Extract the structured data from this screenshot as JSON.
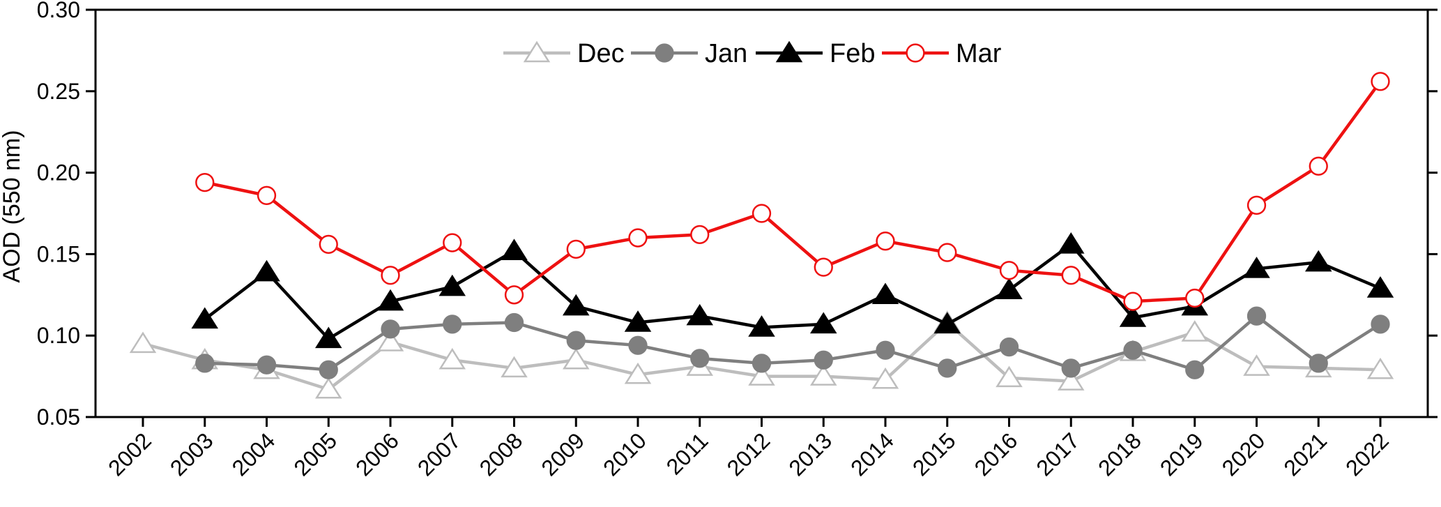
{
  "chart_data": {
    "type": "line",
    "ylabel": "AOD (550 nm)",
    "xlabel": "",
    "ylim": [
      0.05,
      0.3
    ],
    "yticks": [
      "0.05",
      "0.10",
      "0.15",
      "0.20",
      "0.25",
      "0.30"
    ],
    "x": [
      2002,
      2003,
      2004,
      2005,
      2006,
      2007,
      2008,
      2009,
      2010,
      2011,
      2012,
      2013,
      2014,
      2015,
      2016,
      2017,
      2018,
      2019,
      2020,
      2021,
      2022
    ],
    "xtick_labels": [
      "2002",
      "2003",
      "2004",
      "2005",
      "2006",
      "2007",
      "2008",
      "2009",
      "2010",
      "2011",
      "2012",
      "2013",
      "2014",
      "2015",
      "2016",
      "2017",
      "2018",
      "2019",
      "2020",
      "2021",
      "2022"
    ],
    "grid": false,
    "legend_position": "top-center",
    "series": [
      {
        "name": "Dec",
        "color": "#bdbdbd",
        "marker": "triangle-open",
        "x": [
          2002,
          2003,
          2004,
          2005,
          2006,
          2007,
          2008,
          2009,
          2010,
          2011,
          2012,
          2013,
          2014,
          2015,
          2016,
          2017,
          2018,
          2019,
          2020,
          2021,
          2022
        ],
        "values": [
          0.095,
          0.085,
          0.079,
          0.067,
          0.096,
          0.085,
          0.08,
          0.085,
          0.076,
          0.081,
          0.075,
          0.075,
          0.073,
          0.108,
          0.074,
          0.072,
          0.09,
          0.102,
          0.081,
          0.08,
          0.079
        ]
      },
      {
        "name": "Jan",
        "color": "#7f7f7f",
        "marker": "circle-filled",
        "x": [
          2003,
          2004,
          2005,
          2006,
          2007,
          2008,
          2009,
          2010,
          2011,
          2012,
          2013,
          2014,
          2015,
          2016,
          2017,
          2018,
          2019,
          2020,
          2021,
          2022
        ],
        "values": [
          0.083,
          0.082,
          0.079,
          0.104,
          0.107,
          0.108,
          0.097,
          0.094,
          0.086,
          0.083,
          0.085,
          0.091,
          0.08,
          0.093,
          0.08,
          0.091,
          0.079,
          0.112,
          0.083,
          0.107
        ]
      },
      {
        "name": "Feb",
        "color": "#000000",
        "marker": "triangle-filled",
        "x": [
          2003,
          2004,
          2005,
          2006,
          2007,
          2008,
          2009,
          2010,
          2011,
          2012,
          2013,
          2014,
          2015,
          2016,
          2017,
          2018,
          2019,
          2020,
          2021,
          2022
        ],
        "values": [
          0.11,
          0.139,
          0.098,
          0.121,
          0.13,
          0.152,
          0.118,
          0.108,
          0.112,
          0.105,
          0.107,
          0.125,
          0.107,
          0.128,
          0.156,
          0.111,
          0.118,
          0.141,
          0.145,
          0.129
        ]
      },
      {
        "name": "Mar",
        "color": "#ee1111",
        "marker": "circle-open",
        "x": [
          2003,
          2004,
          2005,
          2006,
          2007,
          2008,
          2009,
          2010,
          2011,
          2012,
          2013,
          2014,
          2015,
          2016,
          2017,
          2018,
          2019,
          2020,
          2021,
          2022
        ],
        "values": [
          0.194,
          0.186,
          0.156,
          0.137,
          0.157,
          0.125,
          0.153,
          0.16,
          0.162,
          0.175,
          0.142,
          0.158,
          0.151,
          0.14,
          0.137,
          0.121,
          0.123,
          0.18,
          0.204,
          0.256
        ]
      }
    ]
  }
}
